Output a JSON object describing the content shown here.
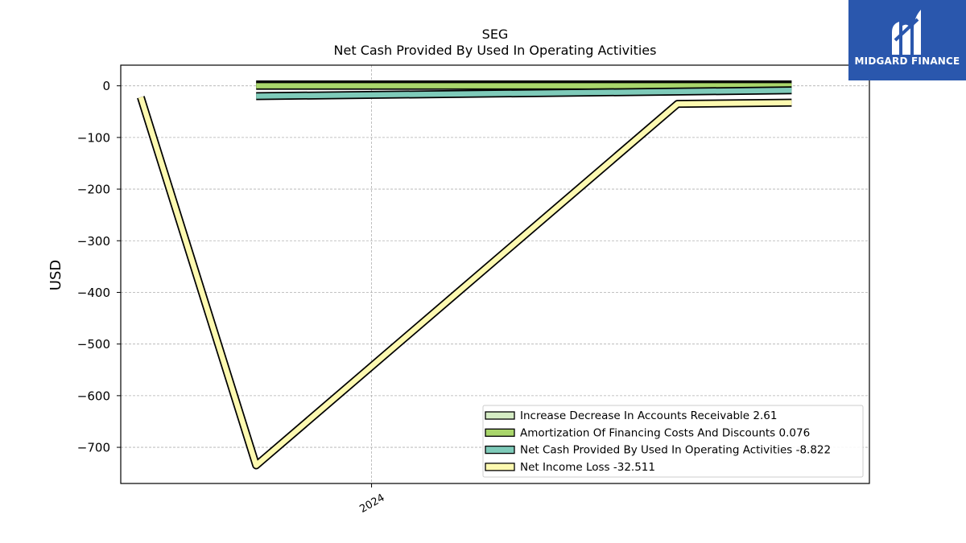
{
  "chart_data": {
    "type": "line",
    "title": "SEG",
    "subtitle": "Net Cash Provided By Used In Operating Activities",
    "ylabel": "USD",
    "ylim": [
      -770,
      40
    ],
    "yticks": [
      0,
      -100,
      -200,
      -300,
      -400,
      -500,
      -600,
      -700
    ],
    "ytick_labels": [
      "0",
      "−100",
      "−200",
      "−300",
      "−400",
      "−500",
      "−600",
      "−700"
    ],
    "xtick_labels": [
      "2024"
    ],
    "grid": true,
    "legend_position": "lower-right",
    "series": [
      {
        "name": "Increase Decrease In Accounts Receivable",
        "legend_label": "Increase Decrease In Accounts Receivable  2.61",
        "color": "#d5ecc4",
        "x": [
          "2023-10",
          "2024-12"
        ],
        "y": [
          2.6,
          2.61
        ]
      },
      {
        "name": "Amortization Of Financing Costs And Discounts",
        "legend_label": "Amortization Of Financing Costs And Discounts  0.076",
        "color": "#a9d66b",
        "x": [
          "2023-10",
          "2024-12"
        ],
        "y": [
          0.07,
          0.076
        ]
      },
      {
        "name": "Net Cash Provided By Used In Operating Activities",
        "legend_label": "Net Cash Provided By Used In Operating Activities  -8.822",
        "color": "#7ecab9",
        "x": [
          "2023-10",
          "2024-12"
        ],
        "y": [
          -20,
          -8.822
        ]
      },
      {
        "name": "Net Income Loss",
        "legend_label": "Net Income Loss  -32.511",
        "color": "#fdf9b0",
        "x": [
          "2023-07",
          "2023-10",
          "2024-09",
          "2024-12"
        ],
        "y": [
          -22,
          -735,
          -35,
          -32.511
        ]
      }
    ]
  },
  "logo": {
    "text": "MIDGARD FINANCE",
    "color": "#2a57ad"
  }
}
